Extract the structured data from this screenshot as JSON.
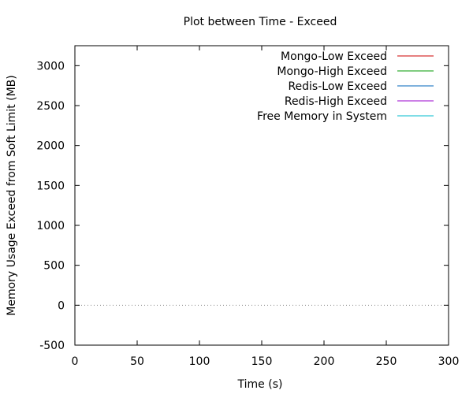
{
  "chart_data": {
    "type": "line",
    "title": "Plot between Time - Exceed",
    "xlabel": "Time (s)",
    "ylabel": "Memory Usage Exceed from Soft Limit (MB)",
    "xlim": [
      0,
      300
    ],
    "ylim": [
      -500,
      3250
    ],
    "xticks": [
      0,
      50,
      100,
      150,
      200,
      250,
      300
    ],
    "yticks": [
      -500,
      0,
      500,
      1000,
      1500,
      2000,
      2500,
      3000
    ],
    "zero_line": {
      "y": 0,
      "style": "dotted",
      "color": "#888888"
    },
    "grid": false,
    "legend_position": "top-right",
    "series": [
      {
        "name": "Mongo-Low Exceed",
        "color": "#cc0000",
        "values": []
      },
      {
        "name": "Mongo-High Exceed",
        "color": "#009900",
        "values": []
      },
      {
        "name": "Redis-Low Exceed",
        "color": "#0066bb",
        "values": []
      },
      {
        "name": "Redis-High Exceed",
        "color": "#9900cc",
        "values": []
      },
      {
        "name": "Free Memory in System",
        "color": "#00bbcc",
        "values": []
      }
    ]
  }
}
